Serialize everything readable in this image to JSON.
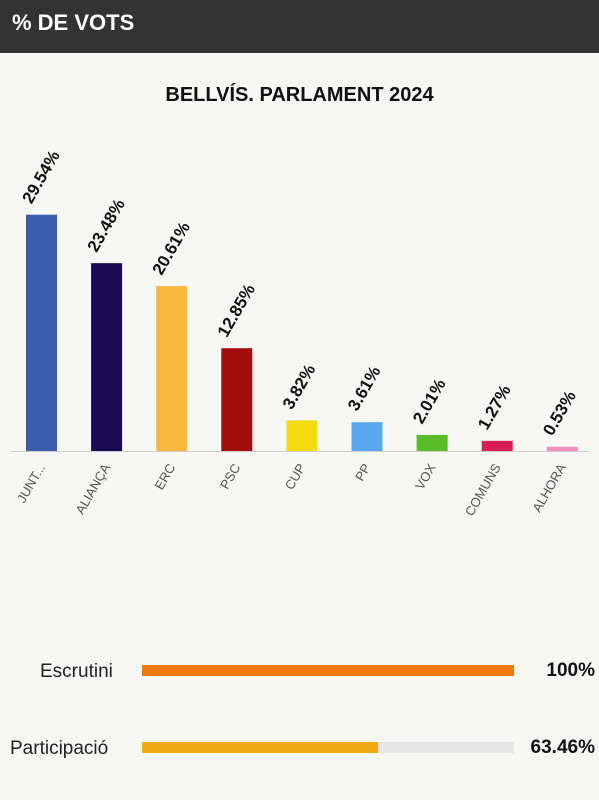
{
  "header": {
    "title": "% DE VOTS"
  },
  "chart_data": {
    "type": "bar",
    "title": "BELLVÍS. PARLAMENT 2024",
    "categories": [
      "JUNT...",
      "ALIANÇA",
      "ERC",
      "PSC",
      "CUP",
      "PP",
      "VOX",
      "COMUNS",
      "ALHORA"
    ],
    "values": [
      29.54,
      23.48,
      20.61,
      12.85,
      3.82,
      3.61,
      2.01,
      1.27,
      0.53
    ],
    "value_labels": [
      "29.54%",
      "23.48%",
      "20.61%",
      "12.85%",
      "3.82%",
      "3.61%",
      "2.01%",
      "1.27%",
      "0.53%"
    ],
    "colors": [
      "#3a5fae",
      "#1a0b55",
      "#f8b840",
      "#a50d0d",
      "#f5dc12",
      "#5aa8f0",
      "#58bd28",
      "#d61e56",
      "#f28fbf"
    ],
    "ylim": [
      0,
      32
    ],
    "grid": false,
    "legend": false
  },
  "progress": {
    "escrutini": {
      "label": "Escrutini",
      "value": 100,
      "value_label": "100%",
      "color": "#f07b0d"
    },
    "participacio": {
      "label": "Participació",
      "value": 63.46,
      "value_label": "63.46%",
      "color": "#f0aa12"
    }
  }
}
